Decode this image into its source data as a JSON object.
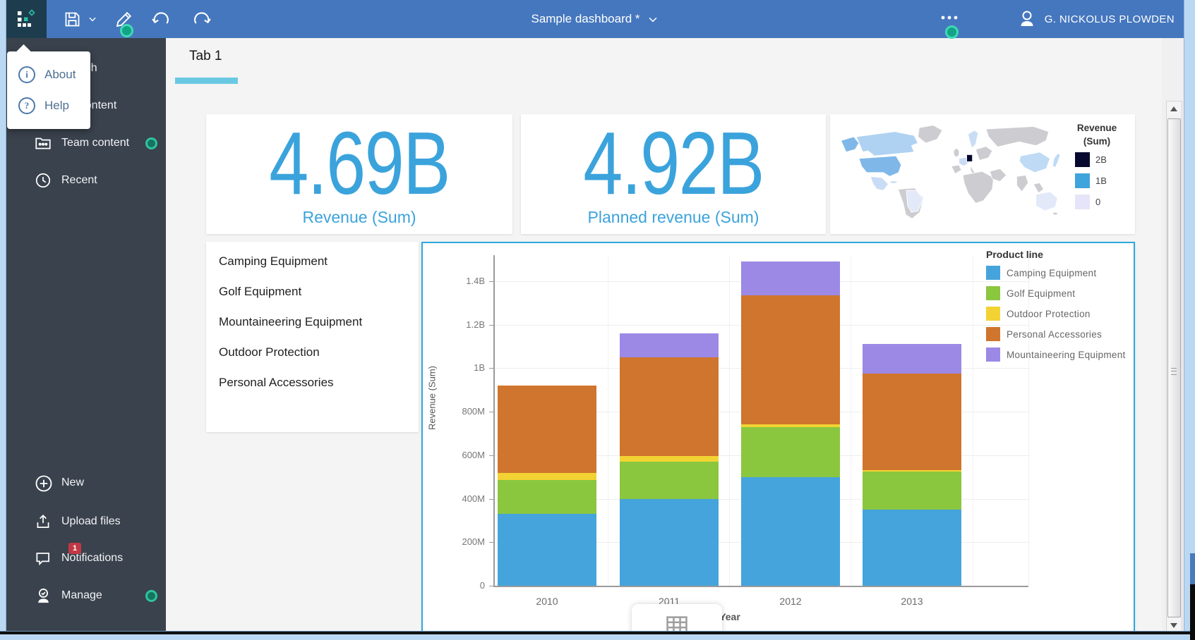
{
  "toolbar": {
    "title": "Sample dashboard *",
    "user_name": "G. NICKOLUS PLOWDEN"
  },
  "menu_popup": {
    "items": [
      {
        "label": "About",
        "glyph": "i"
      },
      {
        "label": "Help",
        "glyph": "?"
      }
    ]
  },
  "sidebar": {
    "top_items": [
      {
        "label": "Search",
        "icon": "search-icon"
      },
      {
        "label": "My content",
        "icon": "my-content-icon"
      },
      {
        "label": "Team content",
        "icon": "team-content-icon",
        "badge_dot": true
      },
      {
        "label": "Recent",
        "icon": "recent-icon"
      }
    ],
    "bottom_items": [
      {
        "label": "New",
        "icon": "new-icon"
      },
      {
        "label": "Upload files",
        "icon": "upload-icon"
      },
      {
        "label": "Notifications",
        "icon": "notifications-icon",
        "badge_count": "1"
      },
      {
        "label": "Manage",
        "icon": "manage-icon",
        "badge_dot": true
      }
    ]
  },
  "tabs": [
    {
      "label": "Tab 1",
      "active": true
    }
  ],
  "kpis": [
    {
      "value": "4.69B",
      "label": "Revenue (Sum)"
    },
    {
      "value": "4.92B",
      "label": "Planned revenue (Sum)"
    }
  ],
  "map_legend": {
    "title_line1": "Revenue",
    "title_line2": "(Sum)",
    "entries": [
      {
        "label": "2B",
        "color": "#07082F"
      },
      {
        "label": "1B",
        "color": "#3FA3DC"
      },
      {
        "label": "0",
        "color": "#E6E4F8"
      }
    ]
  },
  "map_regions": {
    "default": "#CDCDD1",
    "canada": "#AFD2F2",
    "usa": "#7FB8E8",
    "mexico": "#C9DCF5",
    "brazil": "#E2E9F9",
    "europe_light": "#C9DCF5",
    "germany": "#07082F",
    "china": "#BFDAF5",
    "japan": "#BFDAF5",
    "australia": "#E2E9F9"
  },
  "product_list": [
    "Camping Equipment",
    "Golf Equipment",
    "Mountaineering Equipment",
    "Outdoor Protection",
    "Personal Accessories"
  ],
  "chart_data": {
    "type": "bar",
    "stacked": true,
    "categories": [
      "2010",
      "2011",
      "2012",
      "2013"
    ],
    "series": [
      {
        "name": "Camping Equipment",
        "color": "#45A4DB",
        "values_millions": [
          330,
          400,
          500,
          350
        ]
      },
      {
        "name": "Golf Equipment",
        "color": "#8BC63F",
        "values_millions": [
          155,
          170,
          230,
          175
        ]
      },
      {
        "name": "Outdoor Protection",
        "color": "#F2D333",
        "values_millions": [
          35,
          25,
          12,
          7
        ]
      },
      {
        "name": "Personal Accessories",
        "color": "#D0752D",
        "values_millions": [
          400,
          455,
          593,
          443
        ]
      },
      {
        "name": "Mountaineering Equipment",
        "color": "#9B89E5",
        "values_millions": [
          0,
          110,
          155,
          135
        ]
      }
    ],
    "xlabel": "Year",
    "ylabel": "Revenue (Sum)",
    "legend_title": "Product line",
    "legend_position": "right",
    "y_ticks": [
      {
        "label": "0",
        "value": 0
      },
      {
        "label": "200M",
        "value": 200
      },
      {
        "label": "400M",
        "value": 400
      },
      {
        "label": "600M",
        "value": 600
      },
      {
        "label": "800M",
        "value": 800
      },
      {
        "label": "1B",
        "value": 1000
      },
      {
        "label": "1.2B",
        "value": 1200
      },
      {
        "label": "1.4B",
        "value": 1400
      }
    ],
    "ylim_millions": [
      0,
      1520
    ],
    "grid": true
  },
  "colors": {
    "toolbar": "#4577BE",
    "app_tile": "#1D3D4E",
    "teal_accent": "#2EC49F",
    "sidebar": "#3A424D",
    "kpi_blue": "#3BA3DC",
    "tab_underline": "#6AC9E2",
    "chart_border": "#2BA9DE",
    "notification_red": "#C13845"
  }
}
